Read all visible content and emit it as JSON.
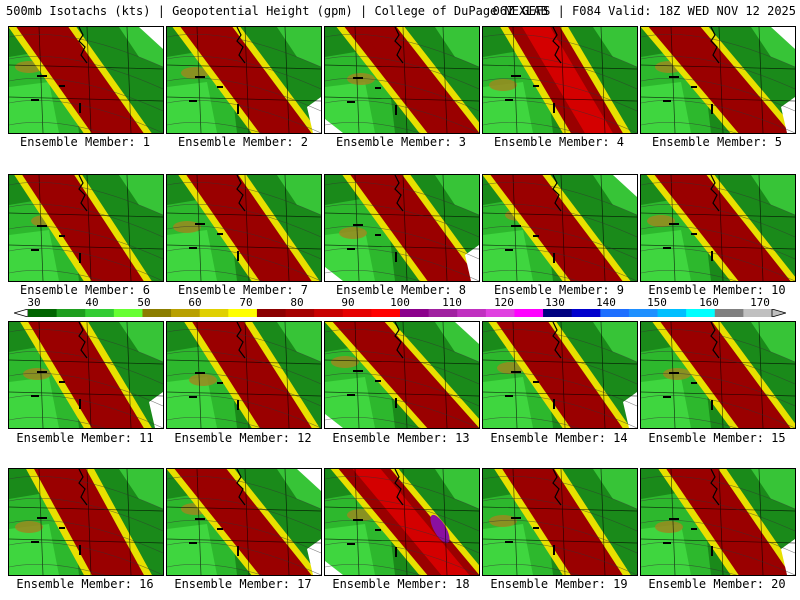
{
  "header": {
    "left": "500mb Isotachs (kts) | Geopotential Height (gpm) | College of DuPage NEXLAB",
    "right": "06Z GEFS | F084 Valid: 18Z WED NOV 12 2025"
  },
  "panel_prefix": "Ensemble Member: ",
  "panels": [
    {
      "label": "Ensemble Member: 1",
      "variant": 0
    },
    {
      "label": "Ensemble Member: 2",
      "variant": 1
    },
    {
      "label": "Ensemble Member: 3",
      "variant": 2
    },
    {
      "label": "Ensemble Member: 4",
      "variant": 3
    },
    {
      "label": "Ensemble Member: 5",
      "variant": 4
    },
    {
      "label": "Ensemble Member: 6",
      "variant": 5
    },
    {
      "label": "Ensemble Member: 7",
      "variant": 6
    },
    {
      "label": "Ensemble Member: 8",
      "variant": 7
    },
    {
      "label": "Ensemble Member: 9",
      "variant": 8
    },
    {
      "label": "Ensemble Member: 10",
      "variant": 9
    },
    {
      "label": "Ensemble Member: 11",
      "variant": 10
    },
    {
      "label": "Ensemble Member: 12",
      "variant": 11
    },
    {
      "label": "Ensemble Member: 13",
      "variant": 12
    },
    {
      "label": "Ensemble Member: 14",
      "variant": 13
    },
    {
      "label": "Ensemble Member: 15",
      "variant": 14
    },
    {
      "label": "Ensemble Member: 16",
      "variant": 15
    },
    {
      "label": "Ensemble Member: 17",
      "variant": 16
    },
    {
      "label": "Ensemble Member: 18",
      "variant": 17
    },
    {
      "label": "Ensemble Member: 19",
      "variant": 18
    },
    {
      "label": "Ensemble Member: 20",
      "variant": 19
    }
  ],
  "colorbar": {
    "ticks": [
      "30",
      "40",
      "50",
      "60",
      "70",
      "80",
      "90",
      "100",
      "110",
      "120",
      "130",
      "140",
      "150",
      "160",
      "170"
    ],
    "colors": [
      "#006400",
      "#1e9e1e",
      "#33cc33",
      "#66ff33",
      "#8b7d00",
      "#b8a000",
      "#e0d000",
      "#ffff00",
      "#8b0000",
      "#a50000",
      "#c80000",
      "#e60000",
      "#ff0000",
      "#8b008b",
      "#a020a0",
      "#c030c0",
      "#e040e0",
      "#ff00ff",
      "#000080",
      "#0000cd",
      "#1e6fff",
      "#1e90ff",
      "#00bfff",
      "#00ffff",
      "#808080",
      "#c0c0c0"
    ]
  },
  "map_colors": {
    "dark_green": "#1a8a1a",
    "green": "#2db82d",
    "light_green": "#44dd44",
    "olive": "#9a8a20",
    "yellow": "#e8e000",
    "dark_red": "#9a0000",
    "red": "#d40000",
    "purple": "#8a10a0",
    "white": "#ffffff"
  }
}
